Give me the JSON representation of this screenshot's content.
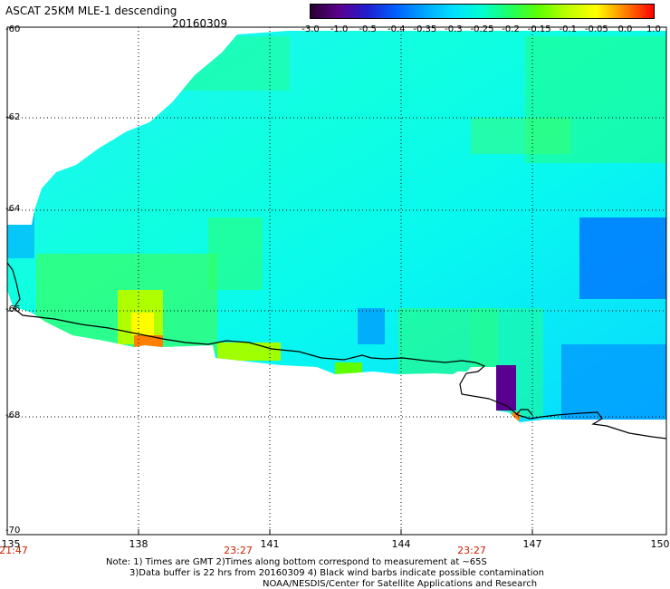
{
  "header": {
    "title": "ASCAT 25KM MLE-1 descending",
    "date": "20160309"
  },
  "colorbar": {
    "labels": [
      "-3.0",
      "-1.0",
      "-0.5",
      "-0.4",
      "-0.35",
      "-0.3",
      "-0.25",
      "-0.2",
      "-0.15",
      "-0.1",
      "-0.05",
      "0.0",
      "1.0"
    ],
    "colors": [
      "#2a0030",
      "#5a0090",
      "#2020d0",
      "#0060ff",
      "#00a8ff",
      "#00e0ff",
      "#00ffd0",
      "#20ff60",
      "#60ff00",
      "#c0ff00",
      "#ffff00",
      "#ff8000",
      "#ff0000"
    ]
  },
  "axes": {
    "lat_labels": [
      "-60",
      "-62",
      "-64",
      "-66",
      "-68",
      "-70"
    ],
    "lon_labels": [
      "135",
      "138",
      "141",
      "144",
      "147",
      "150"
    ]
  },
  "time_labels": [
    "21:47",
    "23:27",
    "23:27"
  ],
  "notes": {
    "line1": "Note: 1) Times are GMT 2)Times along bottom correspond to measurement at ~65S",
    "line2": "3)Data buffer is 22 hrs from 20160309 4) Black wind barbs indicate possible contamination",
    "line3": "NOAA/NESDIS/Center for Satellite Applications and Research"
  }
}
